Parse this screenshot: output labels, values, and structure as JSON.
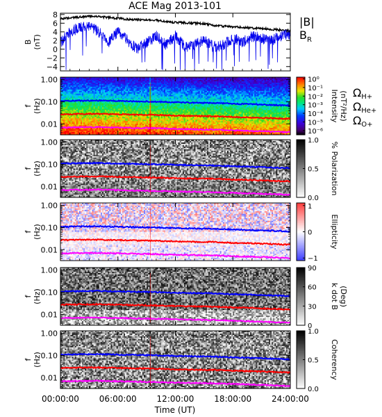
{
  "chart_data": {
    "title": "ACE Mag 2013-101",
    "xlabel": "Time (UT)",
    "x_tick_labels": [
      "00:00:00",
      "06:00:00",
      "12:00:00",
      "18:00:00",
      "24:00:00"
    ],
    "x_tick_hours": [
      0,
      6,
      12,
      18,
      24
    ],
    "xlim_hours": [
      0,
      24
    ],
    "colors": {
      "btotal": "#000000",
      "br": "#0000ee",
      "h_plus": "#0000ff",
      "he_plus": "#ff0000",
      "o_plus": "#ff00ff"
    },
    "legend": {
      "btotal": "|B|",
      "br": "B",
      "br_sub": "R"
    },
    "panels": [
      {
        "name": "magnetic-field",
        "type": "line",
        "ylabel_top": "B",
        "ylabel_bottom": "(nT)",
        "ylim": [
          -5,
          8.3
        ],
        "y_ticks": [
          "8",
          "6",
          "4",
          "2",
          "0",
          "−2",
          "−4"
        ],
        "y_tick_values": [
          8,
          6,
          4,
          2,
          0,
          -2,
          -4
        ],
        "series": [
          {
            "name": "|B|",
            "x_hours": [
              0,
              1,
              2,
              3,
              4,
              5,
              6,
              7,
              8,
              9,
              10,
              11,
              12,
              13,
              14,
              15,
              16,
              17,
              18,
              19,
              20,
              21,
              22,
              23,
              24
            ],
            "values": [
              7.0,
              7.2,
              7.4,
              7.6,
              7.5,
              7.3,
              7.1,
              6.9,
              6.8,
              6.8,
              6.7,
              6.3,
              6.2,
              6.1,
              6.0,
              5.9,
              5.5,
              5.3,
              5.2,
              5.0,
              4.9,
              4.8,
              4.6,
              4.4,
              4.3
            ]
          },
          {
            "name": "B_R",
            "x_hours": [
              0,
              1,
              2,
              3,
              4,
              5,
              6,
              7,
              8,
              9,
              10,
              11,
              12,
              13,
              14,
              15,
              16,
              17,
              18,
              19,
              20,
              21,
              22,
              23,
              24
            ],
            "values": [
              1.5,
              4.0,
              5.0,
              5.5,
              4.0,
              1.5,
              4.0,
              2.0,
              0.0,
              1.5,
              3.0,
              1.0,
              3.0,
              0.5,
              1.0,
              2.0,
              0.5,
              1.0,
              2.5,
              1.5,
              3.0,
              2.5,
              2.0,
              3.0,
              3.5
            ]
          }
        ]
      },
      {
        "name": "intensity-spectrogram",
        "type": "heatmap",
        "ylabel_top": "f",
        "ylabel_bottom": "(Hz)",
        "ylim_log": [
          0.0032,
          1.3
        ],
        "y_ticks": [
          "1.00",
          "0.10",
          "0.01"
        ],
        "y_tick_values": [
          1.0,
          0.1,
          0.01
        ],
        "colorbar_label": "Intensity",
        "colorbar_unit": "(nT²/Hz)",
        "colorbar_ticks": [
          "10⁰",
          "10⁻¹",
          "10⁻²",
          "10⁻³",
          "10⁻⁴",
          "10⁻⁵",
          "10⁻⁶"
        ],
        "colorbar_tick_values": [
          0,
          -1,
          -2,
          -3,
          -4,
          -5,
          -6
        ],
        "colorbar_range_log": [
          -6.5,
          0.2
        ],
        "colormap": "rainbow",
        "gyro_labels": [
          {
            "symbol": "Ω",
            "sub": "H+",
            "color": "#0000ff"
          },
          {
            "symbol": "Ω",
            "sub": "He+",
            "color": "#ff0000"
          },
          {
            "symbol": "Ω",
            "sub": "O+",
            "color": "#ff00ff"
          }
        ]
      },
      {
        "name": "polarization-spectrogram",
        "type": "heatmap",
        "ylabel_top": "f",
        "ylabel_bottom": "(Hz)",
        "ylim_log": [
          0.0032,
          1.3
        ],
        "y_ticks": [
          "1.00",
          "0.10",
          "0.01"
        ],
        "y_tick_values": [
          1.0,
          0.1,
          0.01
        ],
        "colorbar_label": "% Polarization",
        "colorbar_ticks": [
          "1.0",
          "0.5",
          "0.0"
        ],
        "colorbar_tick_values": [
          1.0,
          0.5,
          0.0
        ],
        "colorbar_range": [
          0,
          1
        ],
        "colormap": "gray"
      },
      {
        "name": "ellipticity-spectrogram",
        "type": "heatmap",
        "ylabel_top": "f",
        "ylabel_bottom": "(Hz)",
        "ylim_log": [
          0.0032,
          1.3
        ],
        "y_ticks": [
          "1.00",
          "0.10",
          "0.01"
        ],
        "y_tick_values": [
          1.0,
          0.1,
          0.01
        ],
        "colorbar_label": "Ellipticity",
        "colorbar_ticks": [
          "1",
          "0",
          "−1"
        ],
        "colorbar_tick_values": [
          1,
          0,
          -1
        ],
        "colorbar_range": [
          -1.1,
          1.1
        ],
        "colormap": "bluewhitered"
      },
      {
        "name": "k-dot-b-spectrogram",
        "type": "heatmap",
        "ylabel_top": "f",
        "ylabel_bottom": "(Hz)",
        "ylim_log": [
          0.0032,
          1.3
        ],
        "y_ticks": [
          "1.00",
          "0.10",
          "0.01"
        ],
        "y_tick_values": [
          1.0,
          0.1,
          0.01
        ],
        "colorbar_label": "k dot B",
        "colorbar_unit": "(Deg)",
        "colorbar_ticks": [
          "90",
          "60",
          "30",
          "0"
        ],
        "colorbar_tick_values": [
          90,
          60,
          30,
          0
        ],
        "colorbar_range": [
          0,
          90
        ],
        "colormap": "gray"
      },
      {
        "name": "coherency-spectrogram",
        "type": "heatmap",
        "ylabel_top": "f",
        "ylabel_bottom": "(Hz)",
        "ylim_log": [
          0.0032,
          1.3
        ],
        "y_ticks": [
          "1.00",
          "0.10",
          "0.01"
        ],
        "y_tick_values": [
          1.0,
          0.1,
          0.01
        ],
        "colorbar_label": "Coherency",
        "colorbar_ticks": [
          "1.0",
          "0.5",
          "0.0"
        ],
        "colorbar_tick_values": [
          1.0,
          0.5,
          0.0
        ],
        "colorbar_range": [
          0,
          1
        ],
        "colormap": "gray"
      }
    ],
    "gyrofrequency_lines": [
      {
        "name": "Ω_H+",
        "x_hours": [
          0,
          2,
          4,
          6,
          8,
          9,
          10,
          12,
          14,
          16,
          18,
          20,
          22,
          24
        ],
        "values_hz": [
          0.108,
          0.112,
          0.114,
          0.109,
          0.104,
          0.103,
          0.101,
          0.095,
          0.091,
          0.089,
          0.082,
          0.077,
          0.072,
          0.067
        ]
      },
      {
        "name": "Ω_He+",
        "x_hours": [
          0,
          2,
          4,
          6,
          8,
          9,
          10,
          12,
          14,
          16,
          18,
          20,
          22,
          24
        ],
        "values_hz": [
          0.027,
          0.028,
          0.0285,
          0.0272,
          0.026,
          0.0257,
          0.0252,
          0.0237,
          0.0227,
          0.0222,
          0.0205,
          0.0193,
          0.018,
          0.0168
        ]
      },
      {
        "name": "Ω_O+",
        "x_hours": [
          0,
          2,
          4,
          6,
          8,
          9,
          10,
          12,
          14,
          16,
          18,
          20,
          22,
          24
        ],
        "values_hz": [
          0.0068,
          0.007,
          0.0071,
          0.0068,
          0.0065,
          0.0064,
          0.0063,
          0.0059,
          0.0057,
          0.0055,
          0.0051,
          0.0048,
          0.0045,
          0.0042
        ]
      }
    ]
  }
}
